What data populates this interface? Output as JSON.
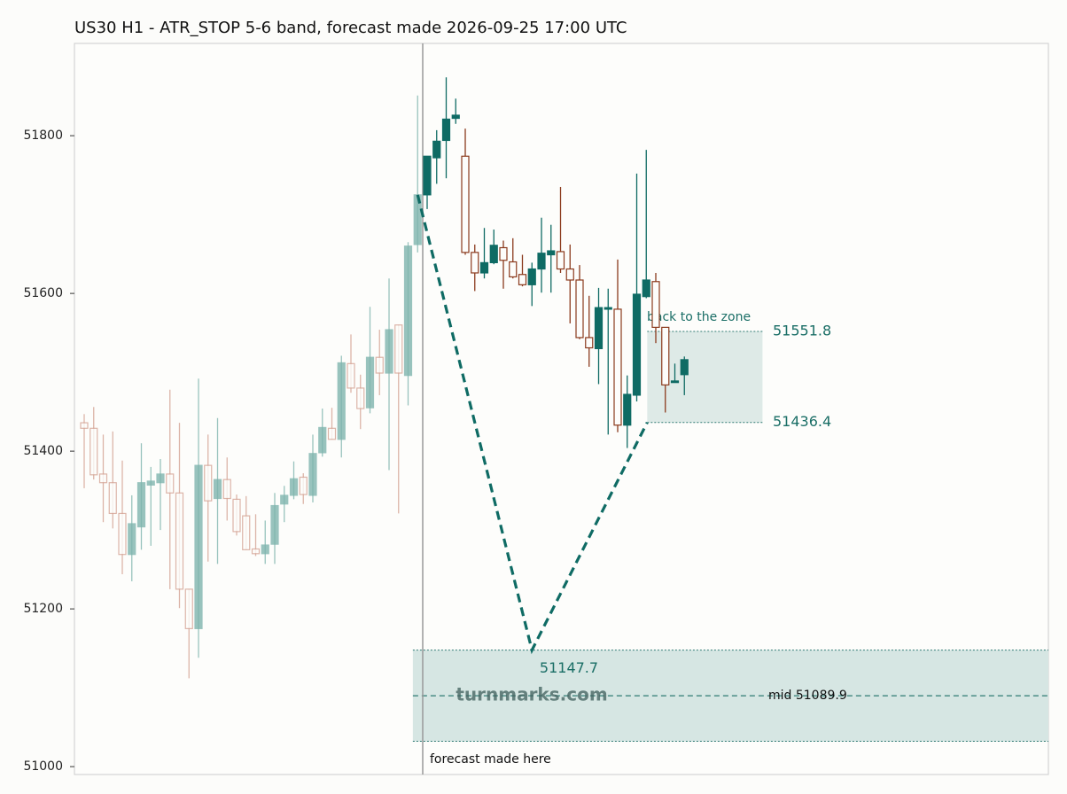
{
  "chart_data": {
    "type": "candlestick",
    "title": "US30 H1 - ATR_STOP 5-6 band, forecast made 2026-09-25 17:00 UTC",
    "ylim": [
      50990,
      51917
    ],
    "yticks": [
      51000,
      51200,
      51400,
      51600,
      51800
    ],
    "series": [
      {
        "color_up": "#7fb5ae",
        "color_down": "#d4a394",
        "open": [
          51436,
          51429,
          51371,
          51360,
          51321,
          51269,
          51304,
          51357,
          51360,
          51371,
          51347,
          51225,
          51175,
          51382,
          51340,
          51364,
          51339,
          51318,
          51276,
          51270,
          51282,
          51333,
          51344,
          51367,
          51344,
          51398,
          51429,
          51415,
          51511,
          51480,
          51455,
          51519,
          51499,
          51560,
          51496,
          51662
        ],
        "high": [
          51447,
          51456,
          51421,
          51425,
          51388,
          51344,
          51410,
          51380,
          51390,
          51478,
          51436,
          51225,
          51492,
          51421,
          51442,
          51392,
          51345,
          51343,
          51320,
          51312,
          51347,
          51356,
          51387,
          51372,
          51421,
          51454,
          51455,
          51521,
          51548,
          51497,
          51583,
          51554,
          51619,
          51560,
          51665,
          51851
        ],
        "low": [
          51353,
          51364,
          51310,
          51302,
          51244,
          51235,
          51275,
          51280,
          51300,
          51225,
          51201,
          51112,
          51138,
          51260,
          51257,
          51312,
          51293,
          51275,
          51267,
          51257,
          51257,
          51310,
          51339,
          51333,
          51335,
          51393,
          51415,
          51392,
          51474,
          51428,
          51448,
          51471,
          51376,
          51321,
          51458,
          51652
        ],
        "close": [
          51429,
          51370,
          51360,
          51321,
          51269,
          51308,
          51360,
          51362,
          51371,
          51347,
          51225,
          51175,
          51382,
          51337,
          51364,
          51340,
          51298,
          51275,
          51270,
          51281,
          51331,
          51344,
          51365,
          51345,
          51397,
          51430,
          51415,
          51512,
          51480,
          51454,
          51519,
          51499,
          51554,
          51499,
          51660,
          51725
        ]
      },
      {
        "color_up": "#0f6b64",
        "color_down": "#8b3a1d",
        "open": [
          51725,
          51772,
          51794,
          51822,
          51774,
          51652,
          51626,
          51639,
          51658,
          51640,
          51624,
          51611,
          51631,
          51649,
          51653,
          51631,
          51617,
          51544,
          51530,
          51580,
          51580,
          51433,
          51471,
          51596,
          51615,
          51557,
          51487,
          51497
        ],
        "high": [
          51774,
          51807,
          51874,
          51847,
          51809,
          51662,
          51683,
          51681,
          51667,
          51670,
          51649,
          51639,
          51696,
          51687,
          51735,
          51662,
          51636,
          51597,
          51607,
          51606,
          51643,
          51496,
          51752,
          51782,
          51626,
          51557,
          51511,
          51520
        ],
        "low": [
          51707,
          51739,
          51746,
          51815,
          51649,
          51603,
          51619,
          51637,
          51606,
          51619,
          51609,
          51584,
          51601,
          51601,
          51626,
          51562,
          51542,
          51507,
          51485,
          51421,
          51424,
          51404,
          51463,
          51594,
          51537,
          51449,
          51487,
          51471
        ],
        "close": [
          51774,
          51793,
          51821,
          51826,
          51652,
          51626,
          51639,
          51661,
          51642,
          51621,
          51611,
          51631,
          51651,
          51654,
          51631,
          51617,
          51544,
          51531,
          51582,
          51582,
          51433,
          51472,
          51599,
          51617,
          51557,
          51484,
          51489,
          51516
        ]
      }
    ],
    "zones": [
      {
        "color": "#deeae7",
        "top": 51551.8,
        "bottom": 51436.4,
        "top_label": "51551.8",
        "bottom_label": "51436.4",
        "note": "back to the zone"
      },
      {
        "color": "#d6e6e3",
        "top": 51147.7,
        "bottom": 51032.1,
        "mid": 51089.9,
        "top_label": "51147.7",
        "mid_label": "mid 51089.9"
      }
    ],
    "path_values": [
      51725,
      51147.7,
      51436.4
    ],
    "path_color": "#0f6b64",
    "watermark": "turnmarks.com",
    "forecast_label": "forecast made here"
  }
}
